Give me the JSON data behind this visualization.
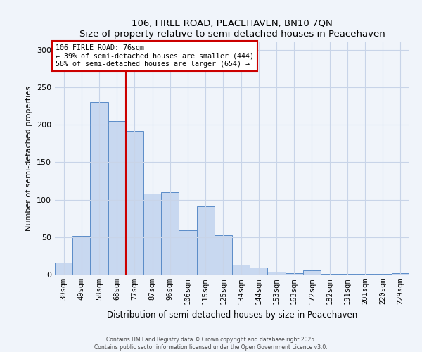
{
  "title": "106, FIRLE ROAD, PEACEHAVEN, BN10 7QN",
  "subtitle": "Size of property relative to semi-detached houses in Peacehaven",
  "xlabel": "Distribution of semi-detached houses by size in Peacehaven",
  "ylabel": "Number of semi-detached properties",
  "categories": [
    "39sqm",
    "49sqm",
    "58sqm",
    "68sqm",
    "77sqm",
    "87sqm",
    "96sqm",
    "106sqm",
    "115sqm",
    "125sqm",
    "134sqm",
    "144sqm",
    "153sqm",
    "163sqm",
    "172sqm",
    "182sqm",
    "191sqm",
    "201sqm",
    "220sqm",
    "229sqm"
  ],
  "values": [
    16,
    52,
    230,
    205,
    192,
    108,
    110,
    59,
    91,
    53,
    13,
    9,
    4,
    2,
    6,
    1,
    1,
    1,
    1,
    2
  ],
  "bar_color": "#c8d8f0",
  "bar_edge_color": "#5b8cc8",
  "highlight_line_color": "#cc0000",
  "annotation_title": "106 FIRLE ROAD: 76sqm",
  "annotation_line1": "← 39% of semi-detached houses are smaller (444)",
  "annotation_line2": "58% of semi-detached houses are larger (654) →",
  "annotation_box_color": "#cc0000",
  "ylim": [
    0,
    310
  ],
  "yticks": [
    0,
    50,
    100,
    150,
    200,
    250,
    300
  ],
  "footer1": "Contains HM Land Registry data © Crown copyright and database right 2025.",
  "footer2": "Contains public sector information licensed under the Open Government Licence v3.0.",
  "bg_color": "#f0f4fa",
  "grid_color": "#c8d4e8"
}
